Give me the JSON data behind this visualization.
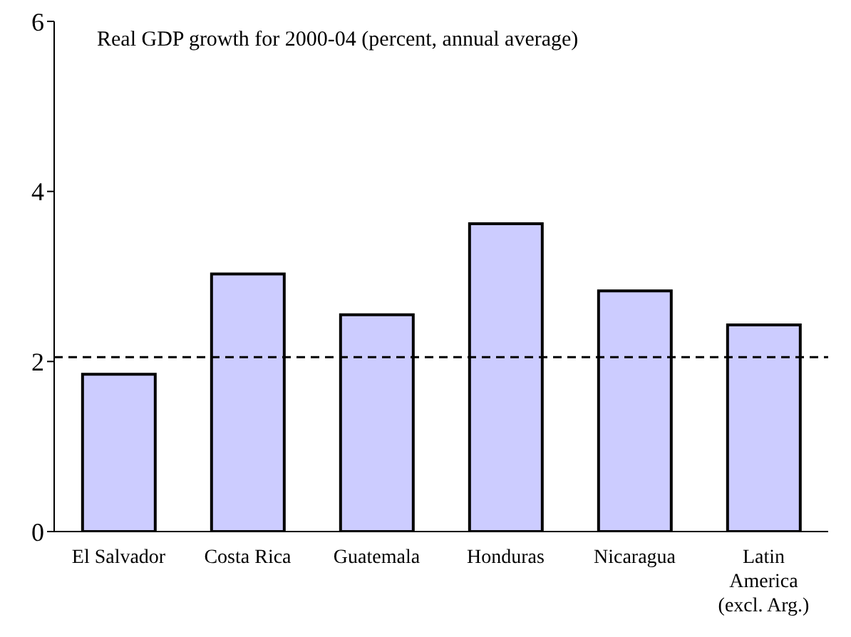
{
  "chart_data": {
    "type": "bar",
    "title": "Real GDP growth for 2000-04 (percent, annual average)",
    "categories": [
      "El Salvador",
      "Costa Rica",
      "Guatemala",
      "Honduras",
      "Nicaragua",
      "Latin America (excl. Arg.)"
    ],
    "values": [
      1.85,
      3.03,
      2.55,
      3.62,
      2.83,
      2.43
    ],
    "color": "#ccccff",
    "ylim": [
      0,
      6
    ],
    "yticks": [
      0,
      2,
      4,
      6
    ],
    "grid": false,
    "legend": false,
    "ref_lines": [
      {
        "axis": "y",
        "value": 2.05,
        "line_style": "dashed",
        "color": "#000000"
      }
    ]
  }
}
